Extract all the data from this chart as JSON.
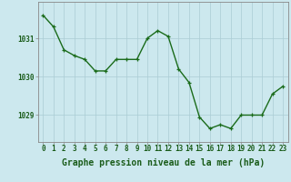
{
  "x": [
    0,
    1,
    2,
    3,
    4,
    5,
    6,
    7,
    8,
    9,
    10,
    11,
    12,
    13,
    14,
    15,
    16,
    17,
    18,
    19,
    20,
    21,
    22,
    23
  ],
  "y": [
    1031.6,
    1031.3,
    1030.7,
    1030.55,
    1030.45,
    1030.15,
    1030.15,
    1030.45,
    1030.45,
    1030.45,
    1031.0,
    1031.2,
    1031.05,
    1030.2,
    1029.85,
    1028.95,
    1028.65,
    1028.75,
    1028.65,
    1029.0,
    1029.0,
    1029.0,
    1029.55,
    1029.75
  ],
  "line_color": "#1a6b1a",
  "marker_color": "#1a6b1a",
  "bg_color": "#cce8ee",
  "grid_color": "#aaccd4",
  "axis_label_color": "#1a5c1a",
  "tick_label_color": "#1a5c1a",
  "xlabel": "Graphe pression niveau de la mer (hPa)",
  "ylim": [
    1028.3,
    1031.95
  ],
  "yticks": [
    1029,
    1030,
    1031
  ],
  "xticks": [
    0,
    1,
    2,
    3,
    4,
    5,
    6,
    7,
    8,
    9,
    10,
    11,
    12,
    13,
    14,
    15,
    16,
    17,
    18,
    19,
    20,
    21,
    22,
    23
  ],
  "xlabel_fontsize": 7,
  "tick_fontsize": 5.5,
  "marker_size": 3,
  "line_width": 1.0
}
